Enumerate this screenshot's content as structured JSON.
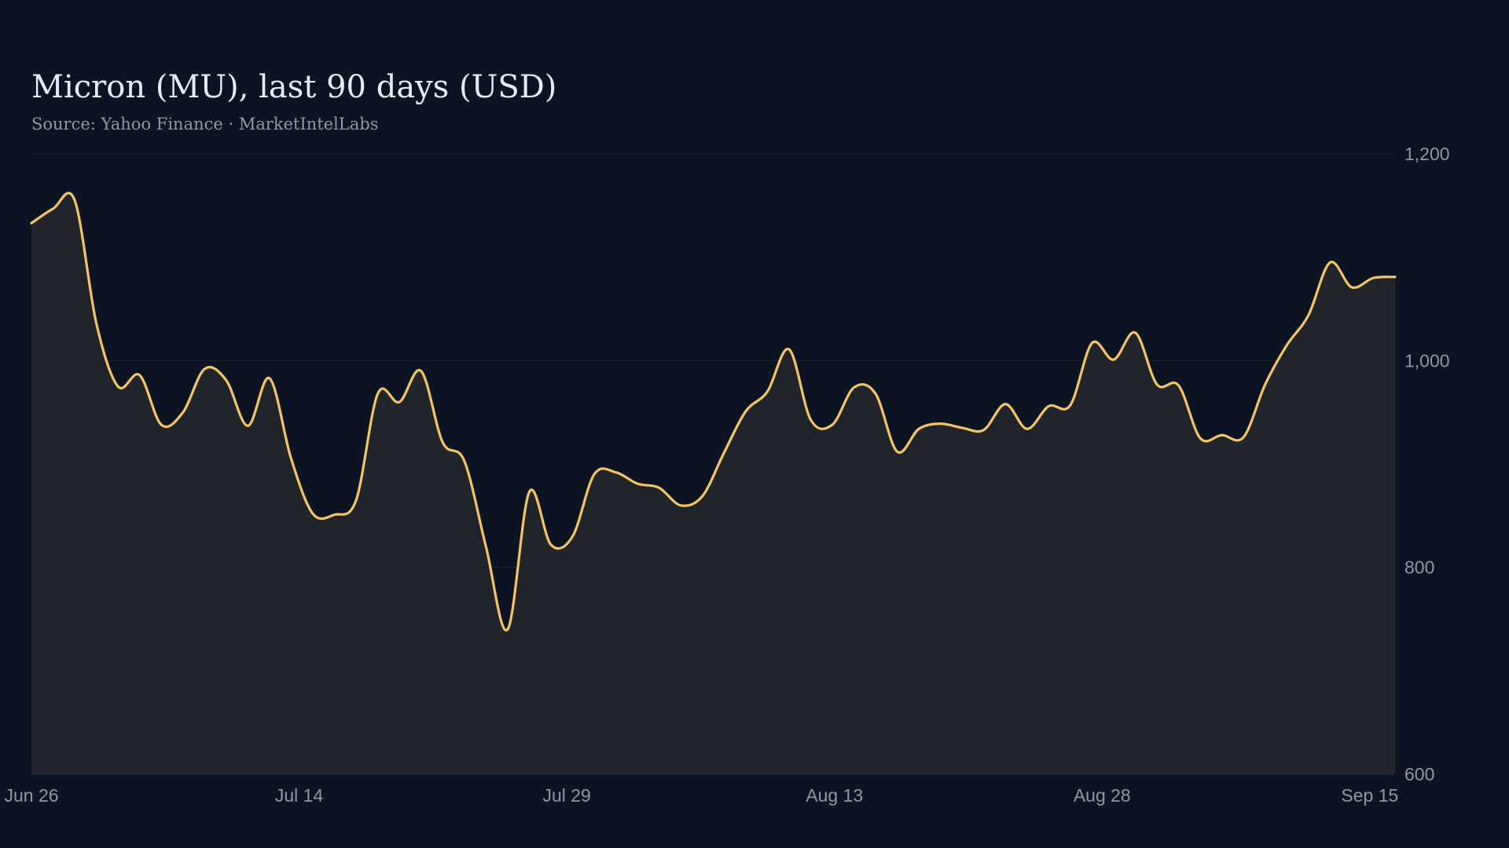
{
  "chart_data": {
    "type": "area",
    "title": "Micron (MU), last 90 days (USD)",
    "subtitle": "Source: Yahoo Finance · MarketIntelLabs",
    "x_tick_labels": [
      "Jun 26",
      "Jul 14",
      "Jul 29",
      "Aug 13",
      "Aug 28",
      "Sep 15"
    ],
    "x_tick_index": [
      0,
      18,
      36,
      54,
      72,
      90
    ],
    "y_tick_labels": [
      "1,200",
      "1,000",
      "800",
      "600"
    ],
    "y_tick_values": [
      1200,
      1000,
      800,
      600
    ],
    "ylim": [
      600,
      1200
    ],
    "grid": true,
    "line_color": "#f4c462",
    "fill_color": "#21242a",
    "series": [
      {
        "values": [
          1133,
          1147,
          1155,
          1036,
          975,
          986,
          938,
          950,
          992,
          981,
          937,
          983,
          905,
          852,
          851,
          865,
          968,
          960,
          990,
          921,
          903,
          820,
          740,
          873,
          822,
          830,
          890,
          892,
          881,
          877,
          860,
          869,
          911,
          951,
          970,
          1011,
          943,
          938,
          974,
          968,
          912,
          934,
          939,
          935,
          933,
          958,
          934,
          956,
          957,
          1017,
          1001,
          1027,
          977,
          976,
          925,
          928,
          926,
          977,
          1015,
          1044,
          1095,
          1071,
          1080,
          1081
        ]
      }
    ]
  }
}
